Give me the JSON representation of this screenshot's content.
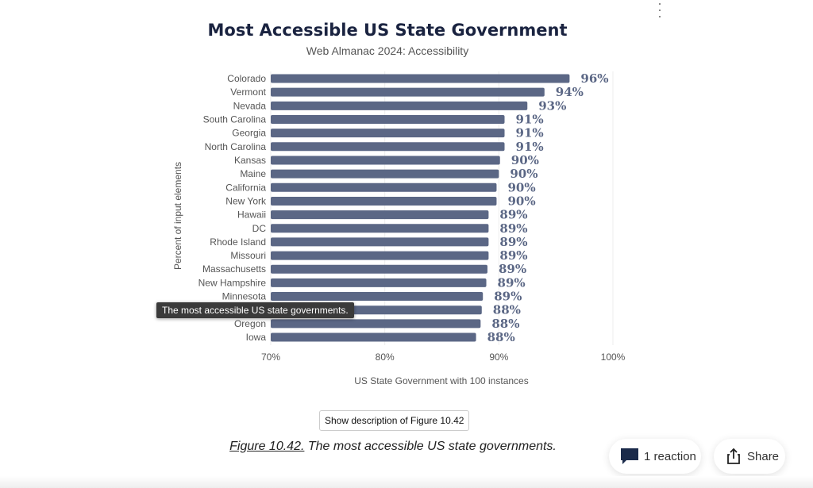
{
  "chart_data": {
    "type": "bar",
    "orientation": "horizontal",
    "title": "Most Accessible US State Government",
    "subtitle": "Web Almanac 2024: Accessibility",
    "xlabel": "US State Government with 100 instances",
    "ylabel": "Percent of input elements",
    "xlim": [
      70,
      100
    ],
    "xticks": [
      "70%",
      "80%",
      "90%",
      "100%"
    ],
    "grid": true,
    "bar_color": "#5b6785",
    "categories": [
      "Colorado",
      "Vermont",
      "Nevada",
      "South Carolina",
      "Georgia",
      "North Carolina",
      "Kansas",
      "Maine",
      "California",
      "New York",
      "Hawaii",
      "DC",
      "Rhode Island",
      "Missouri",
      "Massachusetts",
      "New Hampshire",
      "Minnesota",
      "",
      "Oregon",
      "Iowa"
    ],
    "values": [
      96.2,
      94.0,
      92.5,
      90.5,
      90.5,
      90.5,
      90.1,
      90.0,
      89.8,
      89.8,
      89.1,
      89.1,
      89.1,
      89.1,
      89.0,
      88.9,
      88.6,
      88.5,
      88.4,
      88.0
    ],
    "labels": [
      "96%",
      "94%",
      "93%",
      "91%",
      "91%",
      "91%",
      "90%",
      "90%",
      "90%",
      "90%",
      "89%",
      "89%",
      "89%",
      "89%",
      "89%",
      "89%",
      "89%",
      "88%",
      "88%",
      "88%"
    ]
  },
  "tooltip": "The most accessible US state governments.",
  "description_button": "Show description of Figure 10.42",
  "caption": {
    "figure": "Figure 10.42.",
    "text": " The most accessible US state governments."
  },
  "reaction": {
    "label": "1 reaction",
    "icon": "comment-icon"
  },
  "share": {
    "label": "Share",
    "icon": "share-icon"
  },
  "menu_icon": "more-vertical-icon"
}
